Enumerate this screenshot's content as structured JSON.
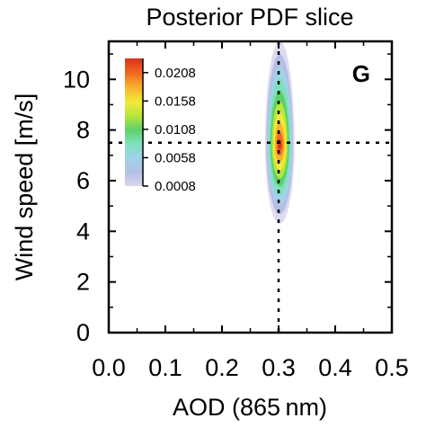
{
  "chart_data": {
    "type": "heatmap",
    "title": "Posterior PDF slice",
    "xlabel": "AOD (865 nm)",
    "ylabel": "Wind speed [m/s]",
    "panel_label": "G",
    "xlim": [
      0.0,
      0.5
    ],
    "ylim": [
      0,
      11.5
    ],
    "xticks": [
      "0.0",
      "0.1",
      "0.2",
      "0.3",
      "0.4",
      "0.5"
    ],
    "yticks": [
      "0",
      "2",
      "4",
      "6",
      "8",
      "10"
    ],
    "grid": false,
    "reference_lines": {
      "x": 0.3,
      "y": 7.5,
      "style": "dashed"
    },
    "colorbar": {
      "placement": "top-left",
      "tick_labels": [
        "0.0208",
        "0.0158",
        "0.0108",
        "0.0058",
        "0.0008"
      ],
      "min": 0.0008,
      "max": 0.0233,
      "colors": [
        "#d9d6ec",
        "#b5bfe6",
        "#9fd3ea",
        "#7fe0bd",
        "#5ed16a",
        "#b8e63a",
        "#f4e83a",
        "#f7b32c",
        "#f36b1f",
        "#d9311c"
      ]
    },
    "density": {
      "peak_x": 0.302,
      "peak_y": 7.4,
      "peak_value": 0.0233,
      "extent_x": [
        0.278,
        0.33
      ],
      "extent_y": [
        4.3,
        11.5
      ]
    }
  }
}
